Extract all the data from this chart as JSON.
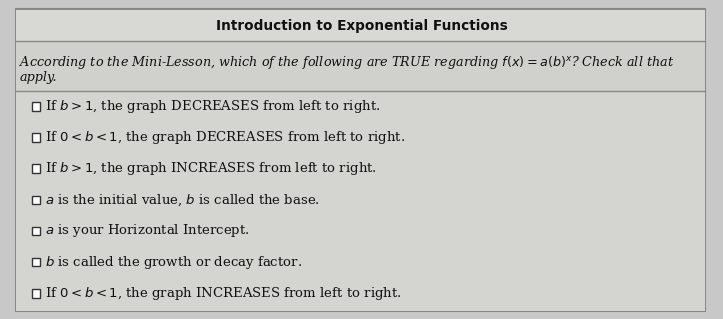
{
  "title": "Introduction to Exponential Functions",
  "question_parts": [
    "According to the Mini-Lesson, which of the following are TRUE regarding ",
    "f(x) = a(b)^x",
    "? Check all that"
  ],
  "question_line2": "apply.",
  "options": [
    [
      "If ",
      "b > 1",
      ", the graph DECREASES from left to right."
    ],
    [
      "If ",
      "0 < b < 1",
      ", the graph DECREASES from left to right."
    ],
    [
      "If ",
      "b > 1",
      ", the graph INCREASES from left to right."
    ],
    [
      "",
      "a",
      " is the initial value, ",
      "b",
      " is called the base."
    ],
    [
      "",
      "a",
      " is your Horizontal Intercept."
    ],
    [
      "",
      "b",
      " is called the growth or decay factor."
    ],
    [
      "If ",
      "0 < b < 1",
      ", the graph INCREASES from left to right."
    ]
  ],
  "bg_outer": "#c8c8c8",
  "bg_title": "#d8d8d4",
  "bg_question": "#d0d0cc",
  "bg_options": "#d4d4d0",
  "border_color": "#888888",
  "text_color": "#111111",
  "title_fontsize": 9.8,
  "question_fontsize": 9.2,
  "option_fontsize": 9.5,
  "checkbox_color": "#222222"
}
